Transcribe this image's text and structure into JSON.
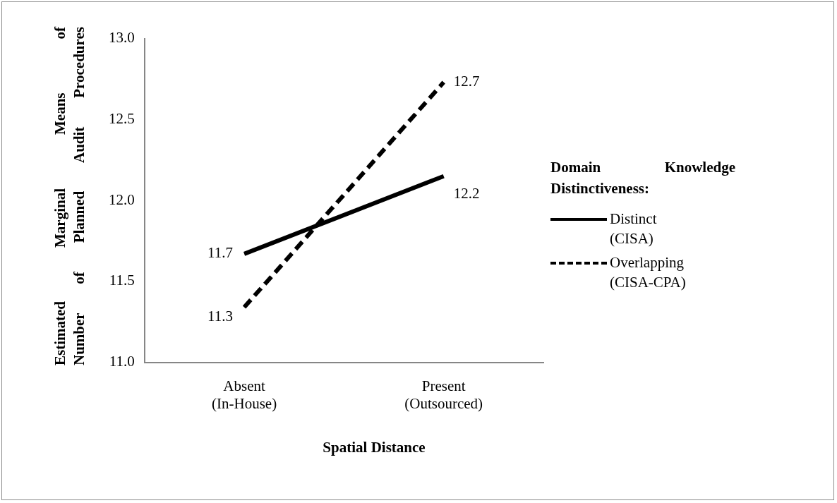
{
  "chart_data": {
    "type": "line",
    "xlabel": "Spatial Distance",
    "ylabel": "Estimated Marginal Means of Number of Planned Audit Procedures",
    "legend_title": "Domain Knowledge Distinctiveness:",
    "categories": [
      "Absent (In-House)",
      "Present (Outsourced)"
    ],
    "series": [
      {
        "name": "Distinct (CISA)",
        "color": "#000000",
        "line_style": "solid",
        "values": [
          11.67,
          12.15
        ],
        "value_labels": [
          "11.7",
          "12.2"
        ]
      },
      {
        "name": "Overlapping (CISA-CPA)",
        "color": "#000000",
        "line_style": "dashed",
        "values": [
          11.34,
          12.73
        ],
        "value_labels": [
          "11.3",
          "12.7"
        ]
      }
    ],
    "ylim": [
      11.0,
      13.0
    ],
    "yticks": [
      {
        "value": 11,
        "label": "11.0"
      },
      {
        "value": 11.5,
        "label": "11.5"
      },
      {
        "value": 12,
        "label": "12.0"
      },
      {
        "value": 12.5,
        "label": "12.5"
      },
      {
        "value": 13,
        "label": "13.0"
      }
    ],
    "grid": false,
    "legend": "right",
    "marker": "none"
  }
}
